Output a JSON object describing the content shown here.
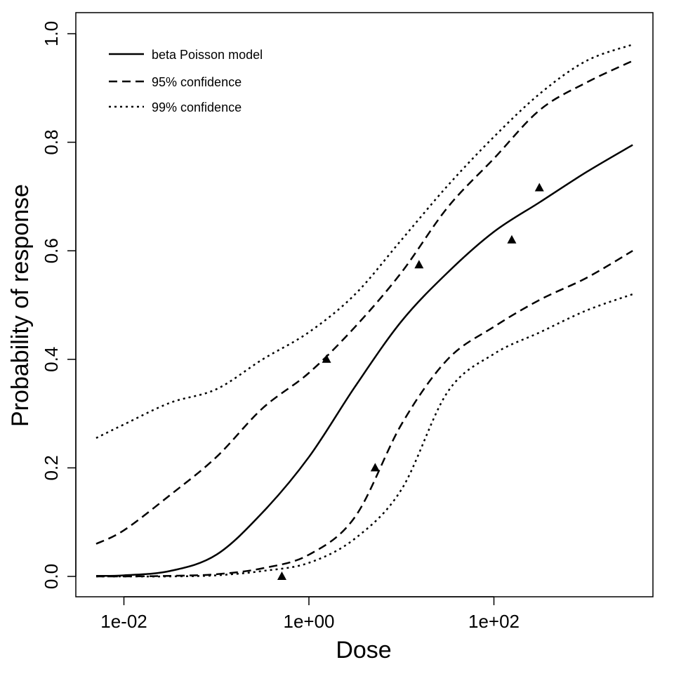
{
  "chart_data": {
    "type": "line",
    "title": "",
    "xlabel": "Dose",
    "ylabel": "Probability of response",
    "xscale": "log10",
    "xlim_log10": [
      -2.7,
      3.6
    ],
    "ylim": [
      -0.035,
      1.04
    ],
    "x_ticks": [
      {
        "log10": -2,
        "label": "1e-02"
      },
      {
        "log10": 0,
        "label": "1e+00"
      },
      {
        "log10": 2,
        "label": "1e+02"
      }
    ],
    "y_ticks": [
      {
        "value": 0,
        "label": "0.0"
      },
      {
        "value": 0.2,
        "label": "0.2"
      },
      {
        "value": 0.4,
        "label": "0.4"
      },
      {
        "value": 0.6,
        "label": "0.6"
      },
      {
        "value": 0.8,
        "label": "0.8"
      },
      {
        "value": 1.0,
        "label": "1.0"
      }
    ],
    "grid": false,
    "legend_position": "top-left",
    "x_log10": [
      -2.3,
      -2,
      -1.5,
      -1,
      -0.5,
      0,
      0.5,
      1,
      1.5,
      2,
      2.5,
      3,
      3.5
    ],
    "series": [
      {
        "name": "beta Poisson model",
        "style": "solid",
        "values": [
          0.001,
          0.002,
          0.01,
          0.04,
          0.118,
          0.22,
          0.35,
          0.47,
          0.56,
          0.635,
          0.69,
          0.745,
          0.795
        ]
      },
      {
        "name": "95% confidence",
        "style": "dashed",
        "values": [
          0.06,
          0.085,
          0.15,
          0.22,
          0.31,
          0.375,
          0.46,
          0.56,
          0.68,
          0.77,
          0.86,
          0.91,
          0.95
        ]
      },
      {
        "name": "95% confidence lower",
        "style": "dashed",
        "legend": false,
        "values": [
          0.0,
          0.0,
          0.001,
          0.004,
          0.015,
          0.04,
          0.11,
          0.28,
          0.4,
          0.46,
          0.51,
          0.55,
          0.6
        ]
      },
      {
        "name": "99% confidence",
        "style": "dotted",
        "values": [
          0.255,
          0.28,
          0.32,
          0.345,
          0.4,
          0.45,
          0.52,
          0.62,
          0.72,
          0.81,
          0.89,
          0.95,
          0.98
        ]
      },
      {
        "name": "99% confidence lower",
        "style": "dotted",
        "legend": false,
        "values": [
          0.0,
          0.0,
          0.0,
          0.002,
          0.01,
          0.025,
          0.07,
          0.16,
          0.34,
          0.41,
          0.45,
          0.49,
          0.52
        ]
      }
    ],
    "observations": [
      {
        "dose": 0.51,
        "p": 0.0
      },
      {
        "dose": 1.55,
        "p": 0.4
      },
      {
        "dose": 5.2,
        "p": 0.2
      },
      {
        "dose": 15.5,
        "p": 0.574
      },
      {
        "dose": 156,
        "p": 0.62
      },
      {
        "dose": 310,
        "p": 0.716
      }
    ],
    "legend": [
      "beta Poisson model",
      "95% confidence",
      "99% confidence"
    ]
  }
}
